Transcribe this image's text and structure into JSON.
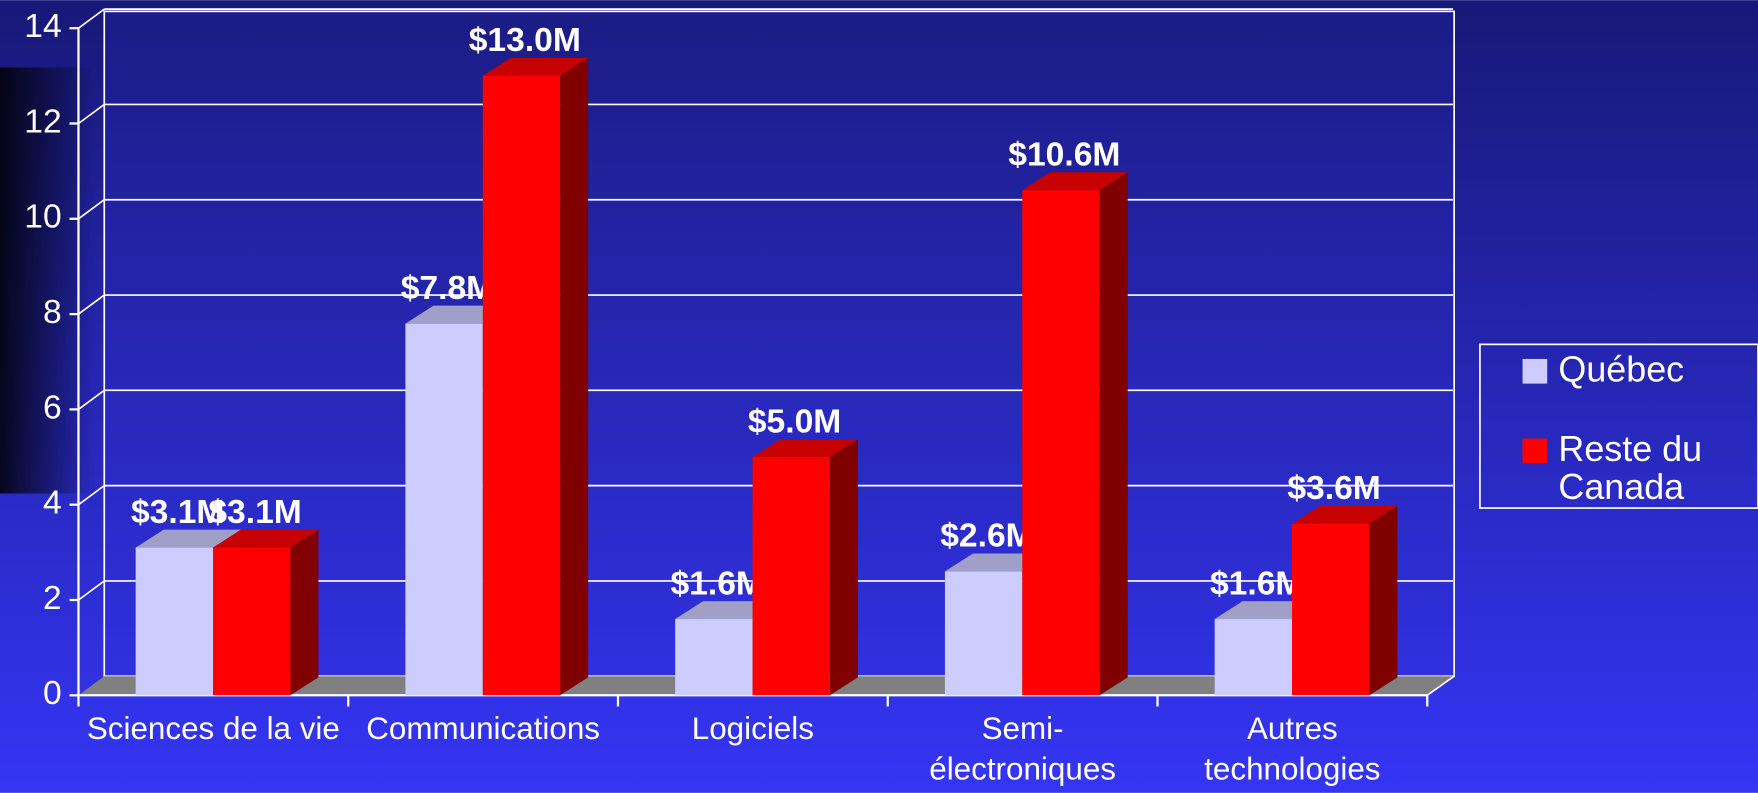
{
  "chart_data": {
    "type": "bar",
    "categories": [
      "Sciences de la vie",
      "Communications",
      "Logiciels",
      "Semi-électroniques",
      "Autres technologies"
    ],
    "series": [
      {
        "name": "Québec",
        "color": "#ccccff",
        "values": [
          3.1,
          7.8,
          1.6,
          2.6,
          1.6
        ],
        "value_labels": [
          "$3.1M",
          "$7.8M",
          "$1.6M",
          "$2.6M",
          "$1.6M"
        ]
      },
      {
        "name": "Reste du Canada",
        "color": "#ff0000",
        "values": [
          3.1,
          13.0,
          5.0,
          10.6,
          3.6
        ],
        "value_labels": [
          "$3.1M",
          "$13.0M",
          "$5.0M",
          "$10.6M",
          "$3.6M"
        ]
      }
    ],
    "ylim": [
      0,
      14
    ],
    "yticks": [
      0,
      2,
      4,
      6,
      8,
      10,
      12,
      14
    ],
    "grid": true,
    "legend": "right"
  }
}
